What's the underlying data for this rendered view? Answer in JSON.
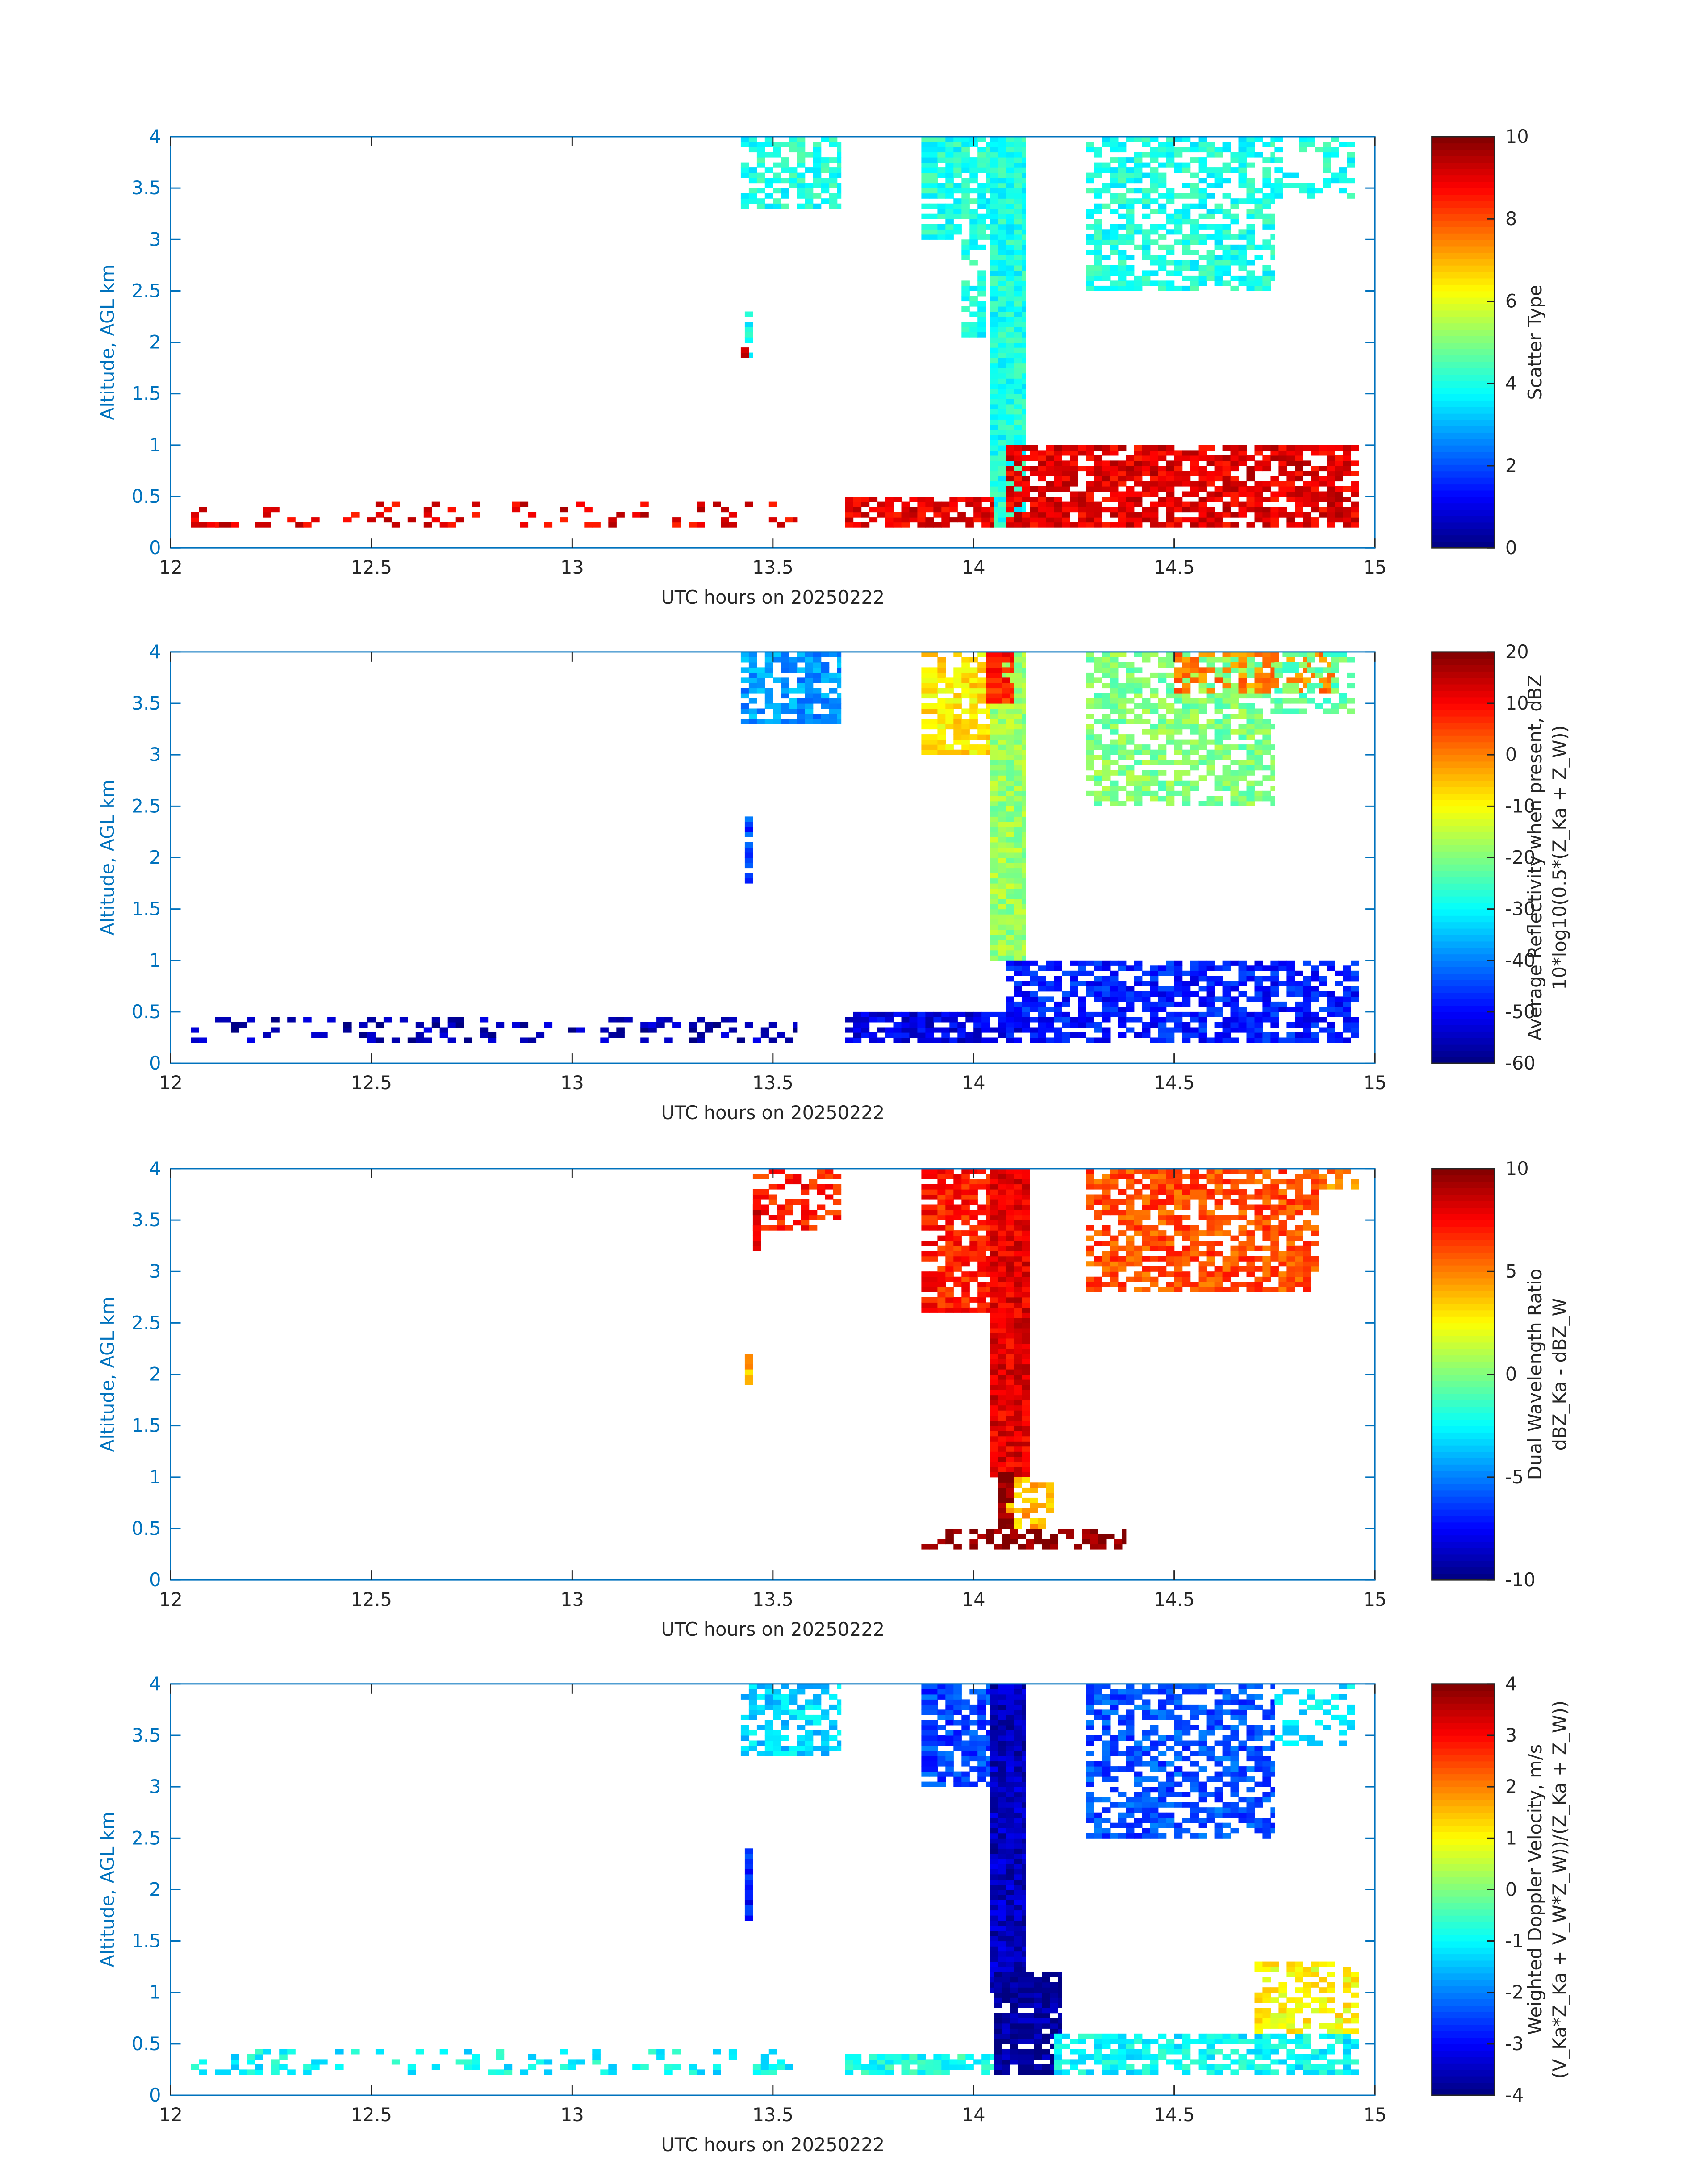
{
  "chart_data": [
    {
      "type": "heatmap",
      "xlabel": "UTC hours on 20250222",
      "ylabel": "Altitude, AGL km",
      "colorbar_label": [
        "Scatter Type"
      ],
      "colormap": "jet",
      "xlim": [
        12,
        15
      ],
      "ylim": [
        0,
        4
      ],
      "clim": [
        0,
        10
      ],
      "xticks": [
        "12",
        "12.5",
        "13",
        "13.5",
        "14",
        "14.5",
        "15"
      ],
      "yticks": [
        "0",
        "0.5",
        "1",
        "1.5",
        "2",
        "2.5",
        "3",
        "3.5",
        "4"
      ],
      "cticks": [
        "0",
        "2",
        "4",
        "6",
        "8",
        "10"
      ],
      "cell": {
        "dt_h": 0.02,
        "dz_km": 0.05
      },
      "regions": [
        {
          "t": [
            13.42,
            13.67
          ],
          "z": [
            3.3,
            4.0
          ],
          "value": 4,
          "frac": 0.7
        },
        {
          "t": [
            13.43,
            13.45
          ],
          "z": [
            1.85,
            2.3
          ],
          "value": 4,
          "frac": 0.8
        },
        {
          "t": [
            13.42,
            13.44
          ],
          "z": [
            1.8,
            1.95
          ],
          "value": 9,
          "frac": 0.9
        },
        {
          "t": [
            13.87,
            14.05
          ],
          "z": [
            3.0,
            4.0
          ],
          "value": 4,
          "frac": 0.75
        },
        {
          "t": [
            13.97,
            14.03
          ],
          "z": [
            2.0,
            3.0
          ],
          "value": 4,
          "frac": 0.6
        },
        {
          "t": [
            14.04,
            14.13
          ],
          "z": [
            0.2,
            4.0
          ],
          "value": 4,
          "frac": 1.0
        },
        {
          "t": [
            14.28,
            14.75
          ],
          "z": [
            2.5,
            4.0
          ],
          "value": 4,
          "frac": 0.6
        },
        {
          "t": [
            14.75,
            14.95
          ],
          "z": [
            3.4,
            4.0
          ],
          "value": 4,
          "frac": 0.45
        },
        {
          "t": [
            14.08,
            14.96
          ],
          "z": [
            0.2,
            1.0
          ],
          "value": 9,
          "frac": 0.75
        },
        {
          "t": [
            13.68,
            14.05
          ],
          "z": [
            0.2,
            0.5
          ],
          "value": 9,
          "frac": 0.75
        },
        {
          "t": [
            12.05,
            13.56
          ],
          "z": [
            0.2,
            0.45
          ],
          "value": 9,
          "frac": 0.2
        },
        {
          "t": [
            12.05,
            12.12
          ],
          "z": [
            0.2,
            0.25
          ],
          "value": 9,
          "frac": 1.0
        }
      ]
    },
    {
      "type": "heatmap",
      "xlabel": "UTC hours on 20250222",
      "ylabel": "Altitude, AGL km",
      "colorbar_label": [
        "Average Reflectivity when present, dBZ",
        "10*log10(0.5*(Z_Ka + Z_W))"
      ],
      "colormap": "jet",
      "xlim": [
        12,
        15
      ],
      "ylim": [
        0,
        4
      ],
      "clim": [
        -60,
        20
      ],
      "xticks": [
        "12",
        "12.5",
        "13",
        "13.5",
        "14",
        "14.5",
        "15"
      ],
      "yticks": [
        "0",
        "0.5",
        "1",
        "1.5",
        "2",
        "2.5",
        "3",
        "3.5",
        "4"
      ],
      "cticks": [
        "-60",
        "-50",
        "-40",
        "-30",
        "-20",
        "-10",
        "0",
        "10",
        "20"
      ],
      "cell": {
        "dt_h": 0.02,
        "dz_km": 0.05
      },
      "regions": [
        {
          "t": [
            13.42,
            13.67
          ],
          "z": [
            3.3,
            4.0
          ],
          "value": -38,
          "frac": 0.7
        },
        {
          "t": [
            13.43,
            13.45
          ],
          "z": [
            1.7,
            2.4
          ],
          "value": -45,
          "frac": 0.85
        },
        {
          "t": [
            13.87,
            14.05
          ],
          "z": [
            3.0,
            4.0
          ],
          "value": -8,
          "frac": 0.75
        },
        {
          "t": [
            14.04,
            14.13
          ],
          "z": [
            1.0,
            4.0
          ],
          "value": -18,
          "frac": 1.0
        },
        {
          "t": [
            14.03,
            14.1
          ],
          "z": [
            3.5,
            4.0
          ],
          "value": 8,
          "frac": 0.8
        },
        {
          "t": [
            14.28,
            14.75
          ],
          "z": [
            2.5,
            4.0
          ],
          "value": -20,
          "frac": 0.6
        },
        {
          "t": [
            14.5,
            14.9
          ],
          "z": [
            3.6,
            4.0
          ],
          "value": 0,
          "frac": 0.5
        },
        {
          "t": [
            14.75,
            14.95
          ],
          "z": [
            3.4,
            4.0
          ],
          "value": -22,
          "frac": 0.4
        },
        {
          "t": [
            14.08,
            14.96
          ],
          "z": [
            0.2,
            1.0
          ],
          "value": -48,
          "frac": 0.7
        },
        {
          "t": [
            13.68,
            14.12
          ],
          "z": [
            0.2,
            0.5
          ],
          "value": -52,
          "frac": 0.8
        },
        {
          "t": [
            12.05,
            13.56
          ],
          "z": [
            0.2,
            0.45
          ],
          "value": -56,
          "frac": 0.25
        }
      ]
    },
    {
      "type": "heatmap",
      "xlabel": "UTC hours on 20250222",
      "ylabel": "Altitude, AGL km",
      "colorbar_label": [
        "Dual Wavelength Ratio",
        "dBZ_Ka - dBZ_W"
      ],
      "colormap": "jet",
      "xlim": [
        12,
        15
      ],
      "ylim": [
        0,
        4
      ],
      "clim": [
        -10,
        10
      ],
      "xticks": [
        "12",
        "12.5",
        "13",
        "13.5",
        "14",
        "14.5",
        "15"
      ],
      "yticks": [
        "0",
        "0.5",
        "1",
        "1.5",
        "2",
        "2.5",
        "3",
        "3.5",
        "4"
      ],
      "cticks": [
        "-10",
        "-5",
        "0",
        "5",
        "10"
      ],
      "cell": {
        "dt_h": 0.02,
        "dz_km": 0.05
      },
      "regions": [
        {
          "t": [
            13.45,
            13.67
          ],
          "z": [
            3.4,
            4.0
          ],
          "value": 7,
          "frac": 0.6
        },
        {
          "t": [
            13.43,
            13.45
          ],
          "z": [
            1.9,
            2.2
          ],
          "value": 4,
          "frac": 0.9
        },
        {
          "t": [
            13.45,
            13.47
          ],
          "z": [
            3.1,
            3.7
          ],
          "value": 8,
          "frac": 0.8
        },
        {
          "t": [
            13.87,
            14.05
          ],
          "z": [
            2.6,
            4.0
          ],
          "value": 7,
          "frac": 0.75
        },
        {
          "t": [
            14.04,
            14.14
          ],
          "z": [
            1.0,
            4.0
          ],
          "value": 8,
          "frac": 1.0
        },
        {
          "t": [
            14.06,
            14.2
          ],
          "z": [
            0.5,
            1.0
          ],
          "value": 4,
          "frac": 0.7
        },
        {
          "t": [
            14.28,
            14.86
          ],
          "z": [
            2.8,
            4.0
          ],
          "value": 6,
          "frac": 0.7
        },
        {
          "t": [
            14.86,
            14.96
          ],
          "z": [
            3.8,
            4.0
          ],
          "value": 5,
          "frac": 0.6
        },
        {
          "t": [
            13.87,
            14.38
          ],
          "z": [
            0.3,
            0.5
          ],
          "value": 10,
          "frac": 0.5
        },
        {
          "t": [
            14.06,
            14.1
          ],
          "z": [
            0.5,
            1.05
          ],
          "value": 10,
          "frac": 0.9
        }
      ]
    },
    {
      "type": "heatmap",
      "xlabel": "UTC hours on 20250222",
      "ylabel": "Altitude, AGL km",
      "colorbar_label": [
        "Weighted Doppler Velocity, m/s",
        "(V_Ka*Z_Ka + V_W*Z_W))/(Z_Ka + Z_W))"
      ],
      "colormap": "jet",
      "xlim": [
        12,
        15
      ],
      "ylim": [
        0,
        4
      ],
      "clim": [
        -4,
        4
      ],
      "xticks": [
        "12",
        "12.5",
        "13",
        "13.5",
        "14",
        "14.5",
        "15"
      ],
      "yticks": [
        "0",
        "0.5",
        "1",
        "1.5",
        "2",
        "2.5",
        "3",
        "3.5",
        "4"
      ],
      "cticks": [
        "-4",
        "-3",
        "-2",
        "-1",
        "0",
        "1",
        "2",
        "3",
        "4"
      ],
      "cell": {
        "dt_h": 0.02,
        "dz_km": 0.05
      },
      "regions": [
        {
          "t": [
            13.42,
            13.67
          ],
          "z": [
            3.3,
            4.0
          ],
          "value": -1.3,
          "frac": 0.7
        },
        {
          "t": [
            13.43,
            13.45
          ],
          "z": [
            1.7,
            2.4
          ],
          "value": -2.8,
          "frac": 0.85
        },
        {
          "t": [
            13.87,
            14.05
          ],
          "z": [
            3.0,
            4.0
          ],
          "value": -2.5,
          "frac": 0.75
        },
        {
          "t": [
            14.04,
            14.13
          ],
          "z": [
            1.0,
            4.0
          ],
          "value": -3.5,
          "frac": 1.0
        },
        {
          "t": [
            14.05,
            14.22
          ],
          "z": [
            0.2,
            1.2
          ],
          "value": -3.8,
          "frac": 0.85
        },
        {
          "t": [
            14.28,
            14.75
          ],
          "z": [
            2.5,
            4.0
          ],
          "value": -2.4,
          "frac": 0.6
        },
        {
          "t": [
            14.75,
            14.95
          ],
          "z": [
            3.4,
            4.0
          ],
          "value": -1.2,
          "frac": 0.45
        },
        {
          "t": [
            14.2,
            14.96
          ],
          "z": [
            0.2,
            0.6
          ],
          "value": -1.0,
          "frac": 0.7
        },
        {
          "t": [
            14.7,
            14.96
          ],
          "z": [
            0.6,
            1.3
          ],
          "value": 1.0,
          "frac": 0.55
        },
        {
          "t": [
            13.68,
            14.05
          ],
          "z": [
            0.2,
            0.4
          ],
          "value": -0.8,
          "frac": 0.75
        },
        {
          "t": [
            12.05,
            13.56
          ],
          "z": [
            0.2,
            0.45
          ],
          "value": -1.0,
          "frac": 0.25
        }
      ]
    }
  ]
}
